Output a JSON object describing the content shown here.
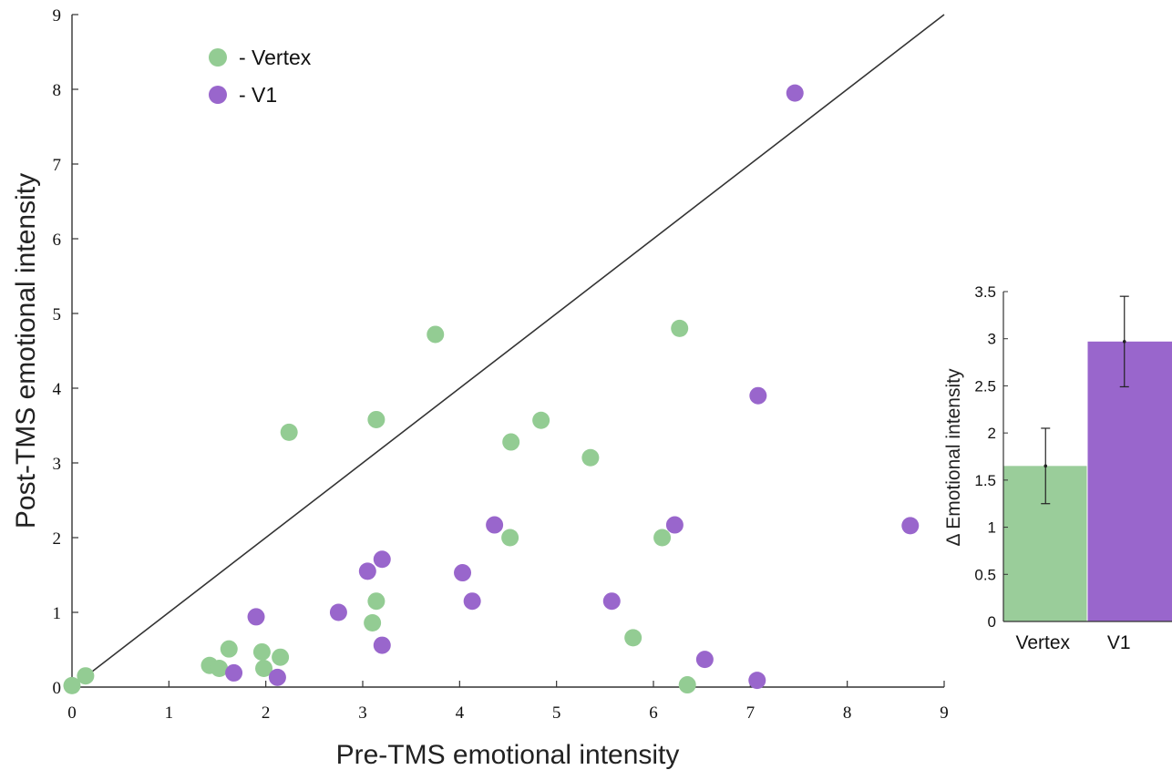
{
  "chart_data": [
    {
      "type": "scatter",
      "xlabel": "Pre-TMS emotional intensity",
      "ylabel": "Post-TMS emotional intensity",
      "xlim": [
        0,
        9
      ],
      "ylim": [
        0,
        9
      ],
      "xticks": [
        "0",
        "1",
        "2",
        "3",
        "4",
        "5",
        "6",
        "7",
        "8",
        "9"
      ],
      "yticks": [
        "0",
        "1",
        "2",
        "3",
        "4",
        "5",
        "6",
        "7",
        "8",
        "9"
      ],
      "grid": false,
      "identity_line": true,
      "legend_position": "top-left",
      "series": [
        {
          "name": "- Vertex",
          "color": "#93cc93",
          "points": [
            [
              0.0,
              0.02
            ],
            [
              0.14,
              0.15
            ],
            [
              1.42,
              0.29
            ],
            [
              1.52,
              0.25
            ],
            [
              1.62,
              0.51
            ],
            [
              1.96,
              0.47
            ],
            [
              1.98,
              0.25
            ],
            [
              2.15,
              0.4
            ],
            [
              2.24,
              3.41
            ],
            [
              3.1,
              0.86
            ],
            [
              3.14,
              1.15
            ],
            [
              3.14,
              3.58
            ],
            [
              3.75,
              4.72
            ],
            [
              4.52,
              2.0
            ],
            [
              4.53,
              3.28
            ],
            [
              4.84,
              3.57
            ],
            [
              5.35,
              3.07
            ],
            [
              5.79,
              0.66
            ],
            [
              6.09,
              2.0
            ],
            [
              6.27,
              4.8
            ],
            [
              6.35,
              0.03
            ]
          ]
        },
        {
          "name": "- V1",
          "color": "#9966cc",
          "points": [
            [
              1.67,
              0.19
            ],
            [
              1.9,
              0.94
            ],
            [
              2.12,
              0.13
            ],
            [
              2.75,
              1.0
            ],
            [
              3.05,
              1.55
            ],
            [
              3.2,
              0.56
            ],
            [
              3.2,
              1.71
            ],
            [
              4.03,
              1.53
            ],
            [
              4.13,
              1.15
            ],
            [
              4.36,
              2.17
            ],
            [
              5.57,
              1.15
            ],
            [
              6.22,
              2.17
            ],
            [
              6.53,
              0.37
            ],
            [
              7.07,
              0.09
            ],
            [
              7.08,
              3.9
            ],
            [
              7.46,
              7.95
            ],
            [
              8.65,
              2.16
            ]
          ]
        }
      ]
    },
    {
      "type": "bar",
      "categories": [
        "Vertex",
        "V1"
      ],
      "values": [
        1.65,
        2.97
      ],
      "errors": [
        0.4,
        0.48
      ],
      "colors": [
        "#9acd9a",
        "#9966cc"
      ],
      "ylabel": "Δ Emotional intensity",
      "ylim": [
        0,
        3.5
      ],
      "yticks": [
        "0",
        "0.5",
        "1",
        "1.5",
        "2",
        "2.5",
        "3",
        "3.5"
      ]
    }
  ]
}
